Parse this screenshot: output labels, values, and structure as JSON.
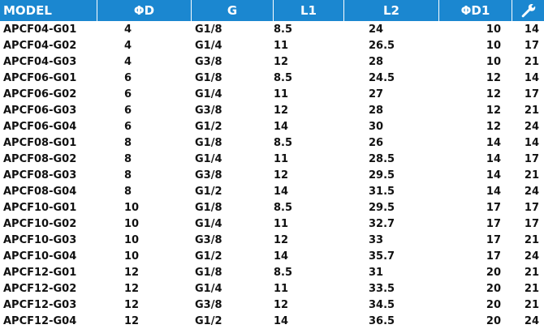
{
  "table": {
    "headers": [
      "MODEL",
      "ΦD",
      "G",
      "L1",
      "L2",
      "ΦD1"
    ],
    "last_header_icon": "wrench-icon",
    "colors": {
      "header_bg": "#1b87d0",
      "alt_row_bg": "#d4d4d4",
      "row_bg": "#ffffff"
    },
    "rows": [
      [
        "APCF04-G01",
        "4",
        "G1/8",
        "8.5",
        "24",
        "10",
        "14"
      ],
      [
        "APCF04-G02",
        "4",
        "G1/4",
        "11",
        "26.5",
        "10",
        "17"
      ],
      [
        "APCF04-G03",
        "4",
        "G3/8",
        "12",
        "28",
        "10",
        "21"
      ],
      [
        "APCF06-G01",
        "6",
        "G1/8",
        "8.5",
        "24.5",
        "12",
        "14"
      ],
      [
        "APCF06-G02",
        "6",
        "G1/4",
        "11",
        "27",
        "12",
        "17"
      ],
      [
        "APCF06-G03",
        "6",
        "G3/8",
        "12",
        "28",
        "12",
        "21"
      ],
      [
        "APCF06-G04",
        "6",
        "G1/2",
        "14",
        "30",
        "12",
        "24"
      ],
      [
        "APCF08-G01",
        "8",
        "G1/8",
        "8.5",
        "26",
        "14",
        "14"
      ],
      [
        "APCF08-G02",
        "8",
        "G1/4",
        "11",
        "28.5",
        "14",
        "17"
      ],
      [
        "APCF08-G03",
        "8",
        "G3/8",
        "12",
        "29.5",
        "14",
        "21"
      ],
      [
        "APCF08-G04",
        "8",
        "G1/2",
        "14",
        "31.5",
        "14",
        "24"
      ],
      [
        "APCF10-G01",
        "10",
        "G1/8",
        "8.5",
        "29.5",
        "17",
        "17"
      ],
      [
        "APCF10-G02",
        "10",
        "G1/4",
        "11",
        "32.7",
        "17",
        "17"
      ],
      [
        "APCF10-G03",
        "10",
        "G3/8",
        "12",
        "33",
        "17",
        "21"
      ],
      [
        "APCF10-G04",
        "10",
        "G1/2",
        "14",
        "35.7",
        "17",
        "24"
      ],
      [
        "APCF12-G01",
        "12",
        "G1/8",
        "8.5",
        "31",
        "20",
        "21"
      ],
      [
        "APCF12-G02",
        "12",
        "G1/4",
        "11",
        "33.5",
        "20",
        "21"
      ],
      [
        "APCF12-G03",
        "12",
        "G3/8",
        "12",
        "34.5",
        "20",
        "21"
      ],
      [
        "APCF12-G04",
        "12",
        "G1/2",
        "14",
        "36.5",
        "20",
        "24"
      ]
    ]
  }
}
